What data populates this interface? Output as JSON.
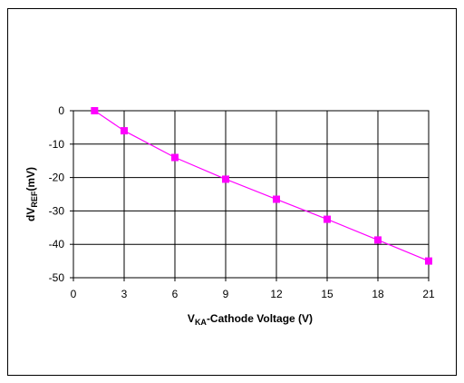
{
  "chart_data": {
    "type": "line",
    "xlabel": {
      "main": "V",
      "sub": "KA",
      "rest": "-Cathode Voltage (V)"
    },
    "ylabel": {
      "main": "dV",
      "sub": "REF",
      "rest": "(mV)"
    },
    "xlim": [
      0,
      21
    ],
    "ylim": [
      -50,
      0
    ],
    "xticks": [
      0,
      3,
      6,
      9,
      12,
      15,
      18,
      21
    ],
    "yticks": [
      0,
      -10,
      -20,
      -30,
      -40,
      -50
    ],
    "grid": true,
    "series": [
      {
        "color": "#ff00ff",
        "marker": "square",
        "x": [
          1.25,
          3,
          6,
          9,
          12,
          15,
          18,
          21
        ],
        "y": [
          0,
          -6,
          -14,
          -20.5,
          -26.5,
          -32.5,
          -38.7,
          -45
        ]
      }
    ]
  }
}
